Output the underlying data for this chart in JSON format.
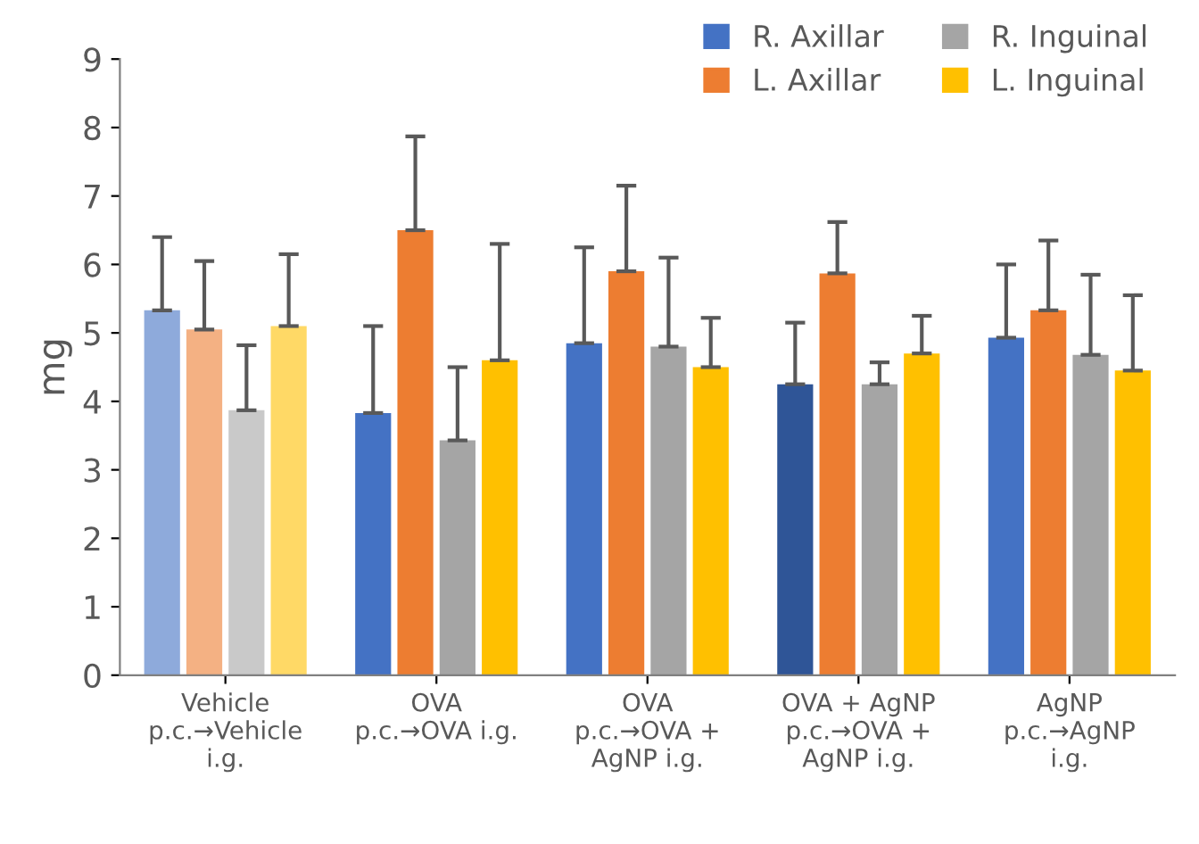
{
  "chart_data": {
    "type": "bar",
    "ylabel": "mg",
    "categories": [
      "Vehicle\np.c.→Vehicle\ni.g.",
      "OVA\np.c.→OVA i.g.",
      "OVA\np.c.→OVA +\nAgNP i.g.",
      "OVA + AgNP\np.c.→OVA +\nAgNP i.g.",
      "AgNP\np.c.→AgNP\ni.g."
    ],
    "series": [
      {
        "name": "R. Axillar",
        "color": "#4472c4",
        "colors": [
          "#8eaadb",
          "#4472c4",
          "#4472c4",
          "#2f5597",
          "#4472c4"
        ],
        "values": [
          5.33,
          3.83,
          4.85,
          4.25,
          4.93
        ],
        "errors": [
          [
            5.33,
            6.4
          ],
          [
            3.83,
            5.1
          ],
          [
            4.85,
            6.25
          ],
          [
            4.25,
            5.15
          ],
          [
            4.93,
            6.0
          ]
        ]
      },
      {
        "name": "L. Axillar",
        "color": "#ed7d31",
        "colors": [
          "#f4b183",
          "#ed7d31",
          "#ed7d31",
          "#ed7d31",
          "#ed7d31"
        ],
        "values": [
          5.05,
          6.5,
          5.9,
          5.87,
          5.33
        ],
        "errors": [
          [
            5.05,
            6.05
          ],
          [
            6.5,
            7.87
          ],
          [
            5.9,
            7.15
          ],
          [
            5.87,
            6.62
          ],
          [
            5.33,
            6.35
          ]
        ]
      },
      {
        "name": "R. Inguinal",
        "color": "#a5a5a5",
        "colors": [
          "#c9c9c9",
          "#a5a5a5",
          "#a5a5a5",
          "#a5a5a5",
          "#a5a5a5"
        ],
        "values": [
          3.87,
          3.43,
          4.8,
          4.25,
          4.68
        ],
        "errors": [
          [
            3.87,
            4.82
          ],
          [
            3.43,
            4.5
          ],
          [
            4.8,
            6.1
          ],
          [
            4.25,
            4.57
          ],
          [
            4.68,
            5.85
          ]
        ]
      },
      {
        "name": "L. Inguinal",
        "color": "#ffc000",
        "colors": [
          "#ffd966",
          "#ffc000",
          "#ffc000",
          "#ffc000",
          "#ffc000"
        ],
        "values": [
          5.1,
          4.6,
          4.5,
          4.7,
          4.45
        ],
        "errors": [
          [
            5.1,
            6.15
          ],
          [
            4.6,
            6.3
          ],
          [
            4.5,
            5.22
          ],
          [
            4.7,
            5.25
          ],
          [
            4.45,
            5.55
          ]
        ]
      }
    ],
    "ylim": [
      0,
      9
    ],
    "yticks": [
      0,
      1,
      2,
      3,
      4,
      5,
      6,
      7,
      8,
      9
    ],
    "grid": false,
    "legend": "top right"
  }
}
